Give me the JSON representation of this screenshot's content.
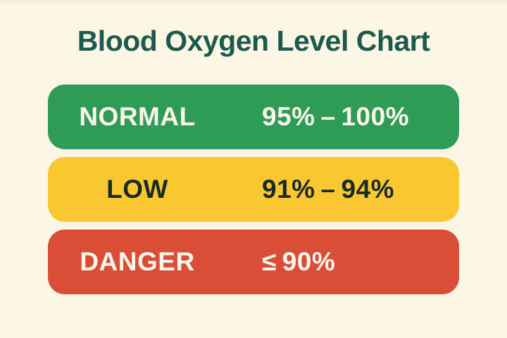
{
  "page": {
    "background_color": "#FCF7E5",
    "title_color": "#1D5A4E",
    "top_edge_shade_color": "#F3EDDA"
  },
  "chart_data": {
    "type": "table",
    "title": "Blood Oxygen Level Chart",
    "columns": [
      "level",
      "spo2_range"
    ],
    "rows": [
      {
        "level": "NORMAL",
        "spo2_range": "95% – 100%",
        "min_pct": 95,
        "max_pct": 100,
        "row_color": "#2E9B57",
        "text_color": "#FBF7EA"
      },
      {
        "level": "LOW",
        "spo2_range": "91% – 94%",
        "min_pct": 91,
        "max_pct": 94,
        "row_color": "#F9C831",
        "text_color": "#182B22"
      },
      {
        "level": "DANGER",
        "spo2_range": "≤ 90%",
        "max_pct": 90,
        "row_color": "#DA4E37",
        "text_color": "#FBF7EA"
      }
    ],
    "legend": "none",
    "layout": "title above three stacked rounded category bars, label column centered left, range column left-aligned right"
  }
}
